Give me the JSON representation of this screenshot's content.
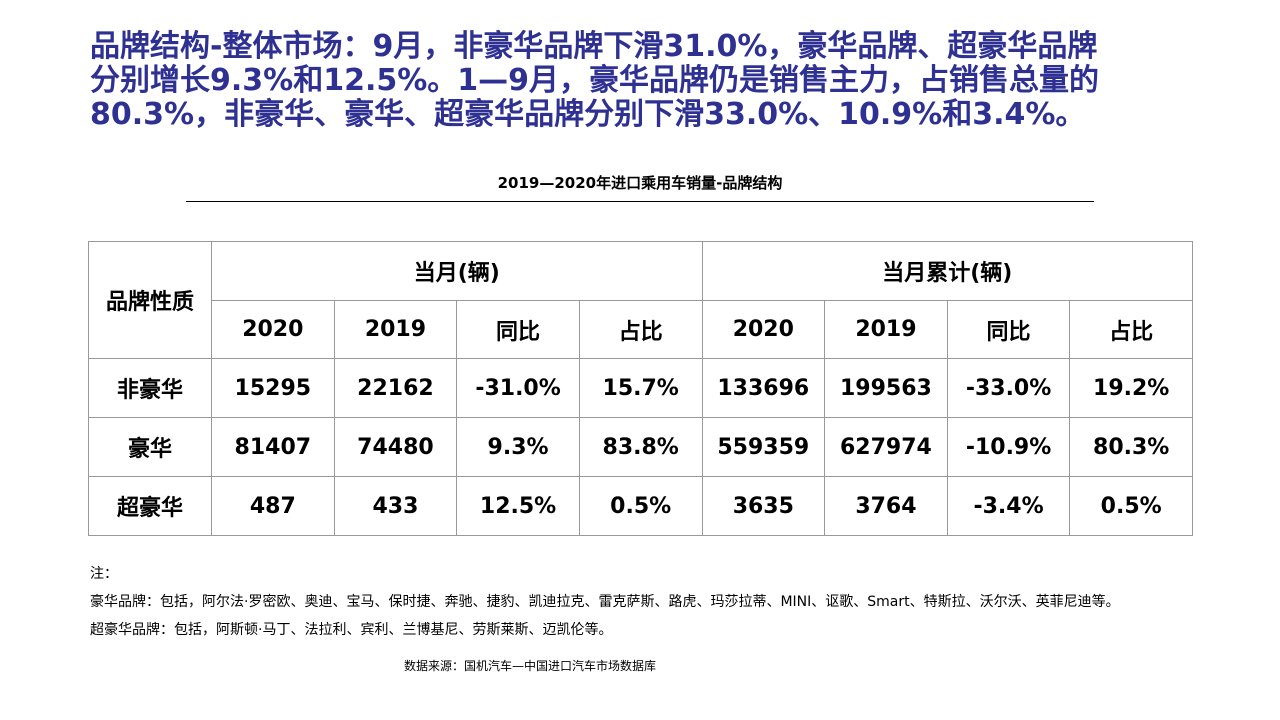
{
  "header": {
    "title_lines": [
      "品牌结构-整体市场：9月，非豪华品牌下滑31.0%，豪华品牌、超豪华品牌",
      "分别增长9.3%和12.5%。1—9月，豪华品牌仍是销售主力，占销售总量的",
      "80.3%，非豪华、豪华、超豪华品牌分别下滑33.0%、10.9%和3.4%。"
    ]
  },
  "table": {
    "caption": "2019—2020年进口乘用车销量-品牌结构",
    "corner": "品牌性质",
    "groups": [
      "当月(辆)",
      "当月累计(辆)"
    ],
    "subheaders": [
      "2020",
      "2019",
      "同比",
      "占比",
      "2020",
      "2019",
      "同比",
      "占比"
    ],
    "rows": [
      [
        "非豪华",
        "15295",
        "22162",
        "-31.0%",
        "15.7%",
        "133696",
        "199563",
        "-33.0%",
        "19.2%"
      ],
      [
        "豪华",
        "81407",
        "74480",
        "9.3%",
        "83.8%",
        "559359",
        "627974",
        "-10.9%",
        "80.3%"
      ],
      [
        "超豪华",
        "487",
        "433",
        "12.5%",
        "0.5%",
        "3635",
        "3764",
        "-3.4%",
        "0.5%"
      ]
    ]
  },
  "notes": [
    "注：",
    "豪华品牌：包括，阿尔法·罗密欧、奥迪、宝马、保时捷、奔驰、捷豹、凯迪拉克、雷克萨斯、路虎、玛莎拉蒂、MINI、讴歌、Smart、特斯拉、沃尔沃、英菲尼迪等。",
    "超豪华品牌：包括，阿斯顿·马丁、法拉利、宾利、兰博基尼、劳斯莱斯、迈凯伦等。"
  ],
  "source": "数据来源：国机汽车—中国进口汽车市场数据库"
}
